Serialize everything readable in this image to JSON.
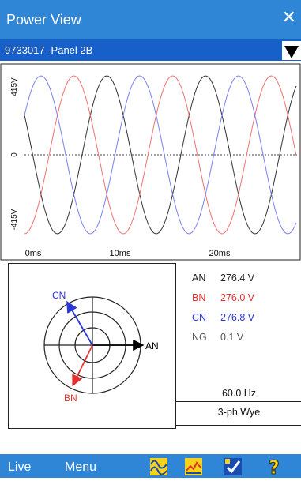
{
  "window": {
    "title": "Power View",
    "close_glyph": "✕"
  },
  "device": {
    "selected": "9733017 -Panel 2B",
    "dropdown_icon": "triangle-down-icon"
  },
  "waveform": {
    "y_max_label": "415V",
    "y_zero_label": "0",
    "y_min_label": "-415V",
    "x_labels": [
      "0ms",
      "10ms",
      "20ms"
    ]
  },
  "readings": {
    "rows": [
      {
        "label": "AN",
        "value": "276.4 V",
        "color": "#222222"
      },
      {
        "label": "BN",
        "value": "276.0 V",
        "color": "#e53030"
      },
      {
        "label": "CN",
        "value": "276.8 V",
        "color": "#2b37d6"
      },
      {
        "label": "NG",
        "value": "0.1 V",
        "color": "#555555"
      }
    ],
    "frequency": "60.0 Hz",
    "configuration": "3-ph Wye"
  },
  "phasor": {
    "labels": {
      "an": "AN",
      "bn": "BN",
      "cn": "CN"
    }
  },
  "bottombar": {
    "live_label": "Live",
    "menu_label": "Menu",
    "icons": [
      "waveform-icon",
      "trend-icon",
      "check-icon",
      "help-icon"
    ]
  },
  "colors": {
    "titlebar": "#2f86d6",
    "device_bar": "#1760ca",
    "phase_a": "#333333",
    "phase_b": "#f07070",
    "phase_c": "#7a80f0"
  }
}
